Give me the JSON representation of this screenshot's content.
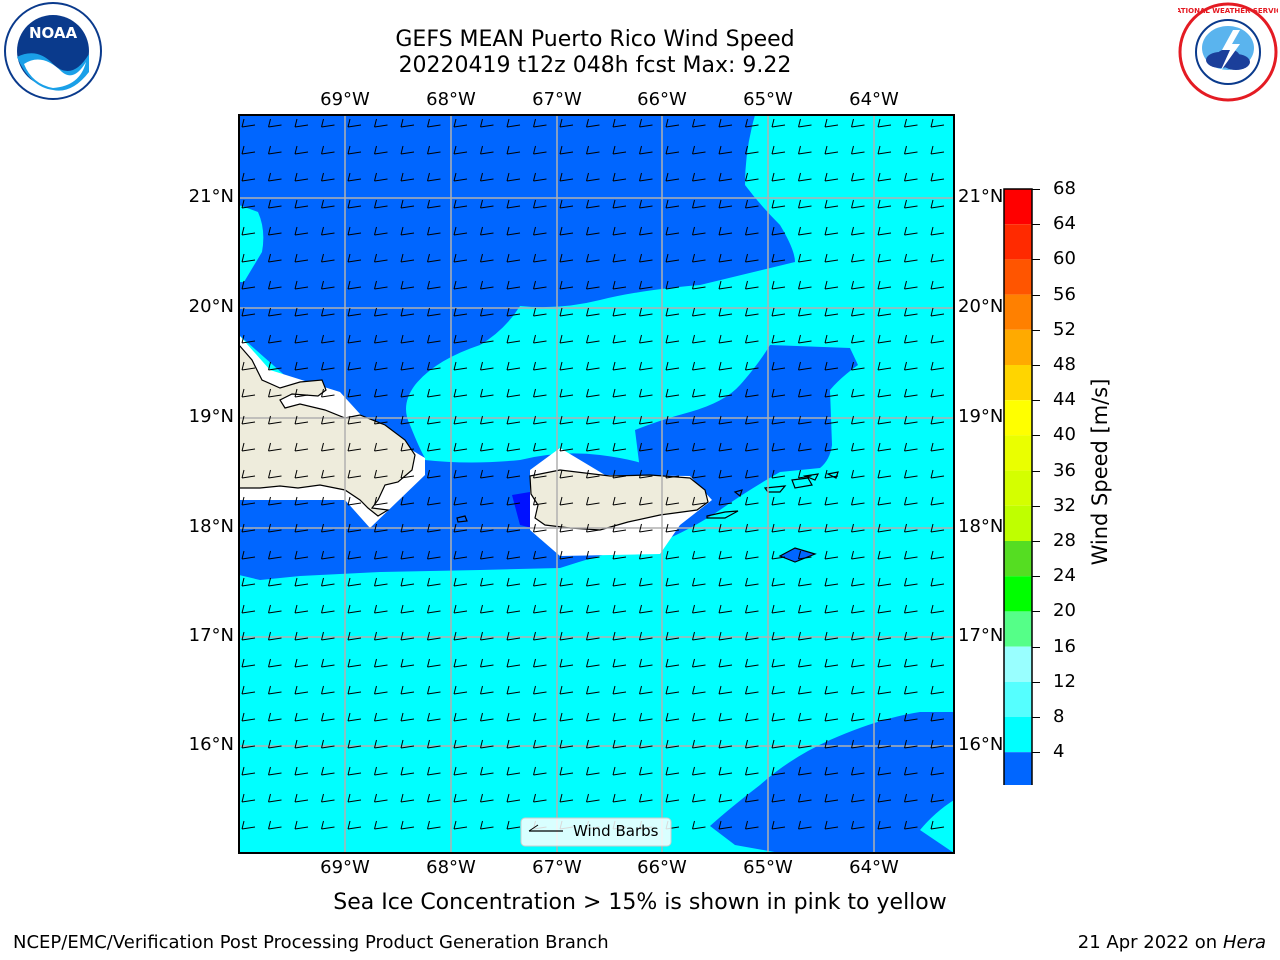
{
  "header": {
    "title_line1": "GEFS MEAN Puerto Rico Wind Speed",
    "title_line2": "20220419 t12z 048h fcst   Max: 9.22"
  },
  "logos": {
    "left": {
      "text": "NOAA",
      "ring_text": "NATIONAL OCEANIC AND ATMOSPHERIC ADMINISTRATION · U.S. DEPARTMENT OF COMMERCE",
      "color": "#0a3a8c"
    },
    "right": {
      "ring_text": "NATIONAL WEATHER SERVICE",
      "color": "#e41b23"
    }
  },
  "map": {
    "lon_labels": [
      "69°W",
      "68°W",
      "67°W",
      "66°W",
      "65°W",
      "64°W"
    ],
    "lat_labels": [
      "21°N",
      "20°N",
      "19°N",
      "18°N",
      "17°N",
      "16°N"
    ],
    "legend_label": "Wind Barbs",
    "colors": {
      "dark_blue": "#0066ff",
      "cyan": "#00ffff",
      "land": "#eeecdc",
      "white": "#ffffff",
      "deep": "#0011ff"
    }
  },
  "colorbar": {
    "label": "Wind Speed [m/s]",
    "ticks": [
      "68",
      "64",
      "60",
      "56",
      "52",
      "48",
      "44",
      "40",
      "36",
      "32",
      "28",
      "24",
      "20",
      "16",
      "12",
      "8",
      "4"
    ],
    "colors": [
      "#ff0000",
      "#ff2a00",
      "#ff5500",
      "#ff8000",
      "#ffaa00",
      "#ffd500",
      "#ffff00",
      "#eaff00",
      "#d4ff00",
      "#bfff00",
      "#55dd22",
      "#00ff00",
      "#55ff88",
      "#99ffff",
      "#55ffff",
      "#00ffff",
      "#0066ff"
    ],
    "below_color": "#0000ff"
  },
  "caption": "Sea Ice Concentration > 15% is shown in pink to yellow",
  "footer": {
    "left": "NCEP/EMC/Verification Post Processing Product Generation Branch",
    "right_prefix": "21 Apr 2022 on",
    "right_host": "Hera"
  }
}
